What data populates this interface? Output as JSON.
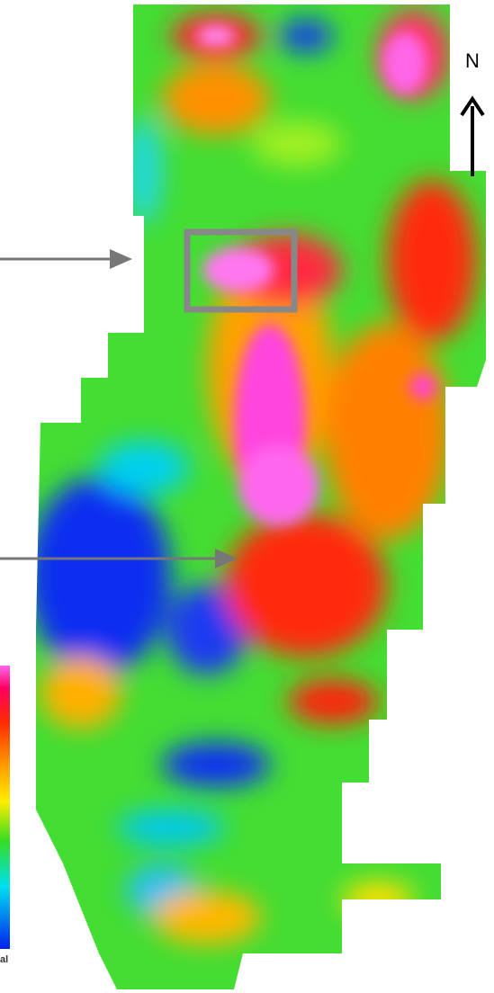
{
  "north_label": "N",
  "legend_fragment": "al"
}
